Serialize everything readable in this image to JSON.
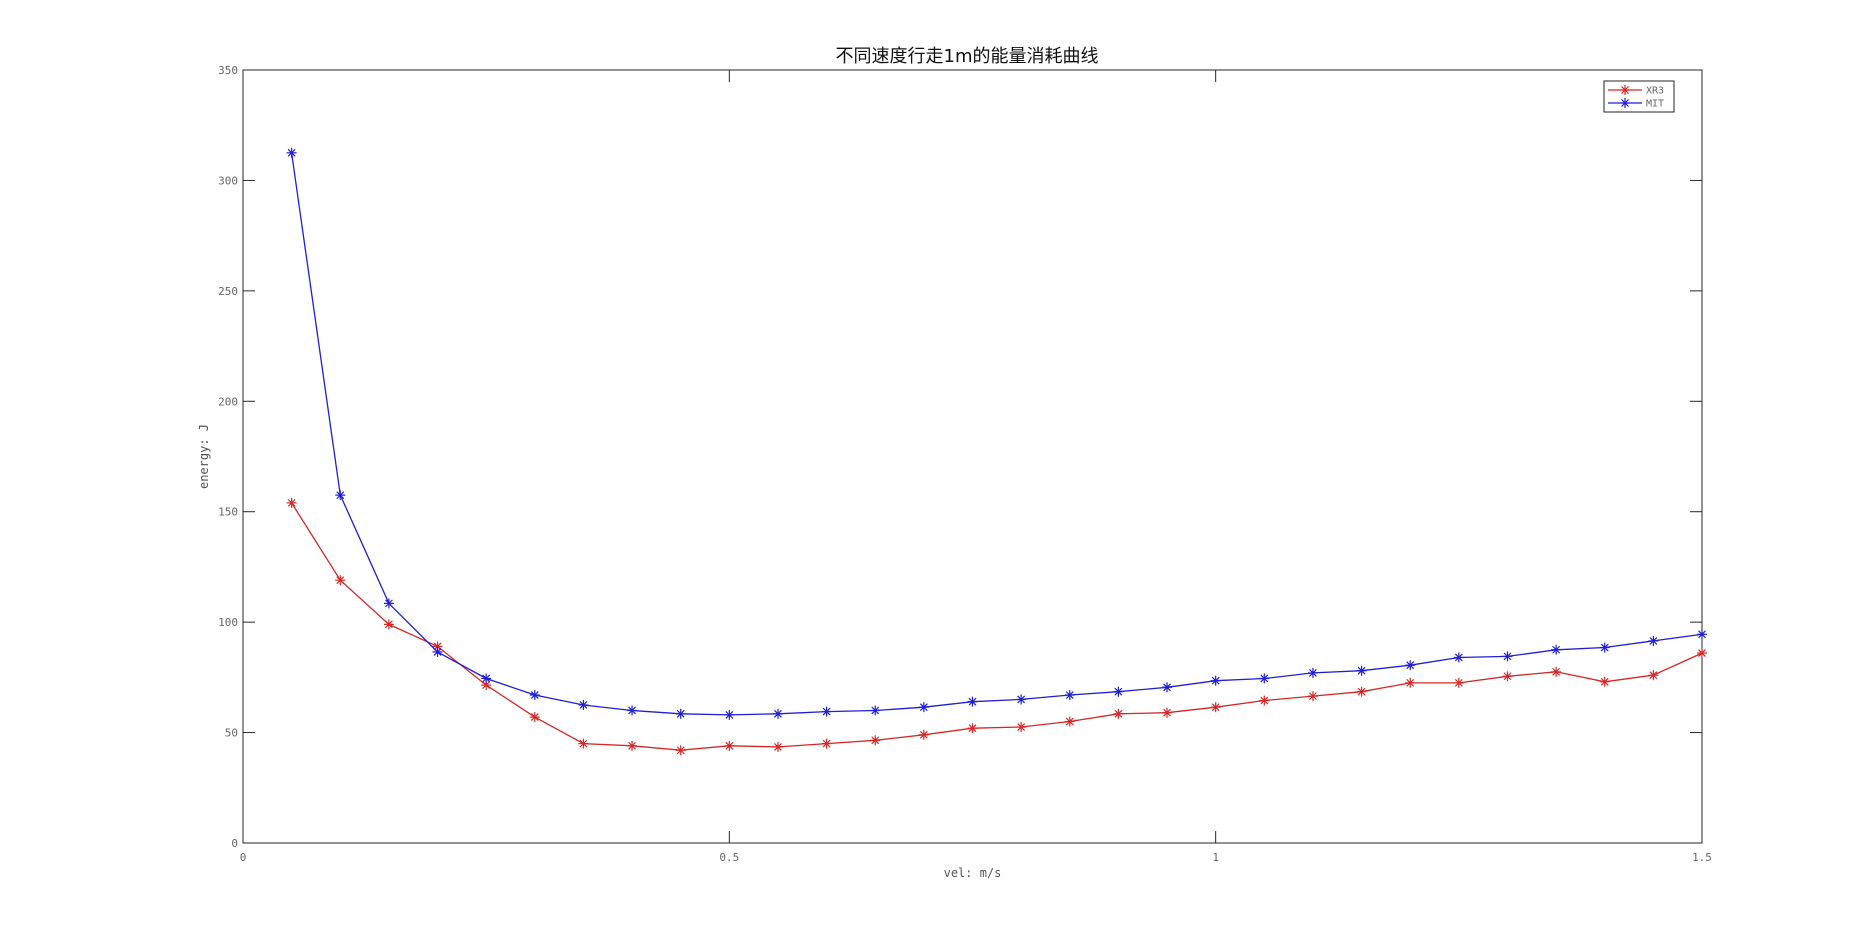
{
  "chart_data": {
    "type": "line",
    "title": "不同速度行走1m的能量消耗曲线",
    "xlabel": "vel: m/s",
    "ylabel": "energy: J",
    "xlim": [
      0,
      1.5
    ],
    "ylim": [
      0,
      350
    ],
    "xticks": [
      0,
      0.5,
      1,
      1.5
    ],
    "xtick_labels": [
      "0",
      "0.5",
      "1",
      "1.5"
    ],
    "yticks": [
      0,
      50,
      100,
      150,
      200,
      250,
      300,
      350
    ],
    "ytick_labels": [
      "0",
      "50",
      "100",
      "150",
      "200",
      "250",
      "300",
      "350"
    ],
    "grid": false,
    "legend_position": "top-right",
    "series": [
      {
        "name": "XR3",
        "color": "#d62728",
        "marker": "asterisk",
        "x": [
          0.05,
          0.1,
          0.15,
          0.2,
          0.25,
          0.3,
          0.35,
          0.4,
          0.45,
          0.5,
          0.55,
          0.6,
          0.65,
          0.7,
          0.75,
          0.8,
          0.85,
          0.9,
          0.95,
          1.0,
          1.05,
          1.1,
          1.15,
          1.2,
          1.25,
          1.3,
          1.35,
          1.4,
          1.45,
          1.5
        ],
        "values": [
          154,
          119,
          99,
          89,
          71.5,
          57,
          45,
          44,
          42,
          44,
          43.5,
          45,
          46.5,
          49,
          52,
          52.5,
          55,
          58.5,
          59,
          61.5,
          64.5,
          66.5,
          68.5,
          72.5,
          72.5,
          75.5,
          77.5,
          73,
          76,
          86
        ]
      },
      {
        "name": "MIT",
        "color": "#1f1fd6",
        "marker": "asterisk",
        "x": [
          0.05,
          0.1,
          0.15,
          0.2,
          0.25,
          0.3,
          0.35,
          0.4,
          0.45,
          0.5,
          0.55,
          0.6,
          0.65,
          0.7,
          0.75,
          0.8,
          0.85,
          0.9,
          0.95,
          1.0,
          1.05,
          1.1,
          1.15,
          1.2,
          1.25,
          1.3,
          1.35,
          1.4,
          1.45,
          1.5
        ],
        "values": [
          312.5,
          157.5,
          108.5,
          86.5,
          74.5,
          67,
          62.5,
          60,
          58.5,
          58,
          58.5,
          59.5,
          60,
          61.5,
          64,
          65,
          67,
          68.5,
          70.5,
          73.5,
          74.5,
          77,
          78,
          80.5,
          84,
          84.5,
          87.5,
          88.5,
          91.5,
          94.5
        ]
      }
    ]
  }
}
